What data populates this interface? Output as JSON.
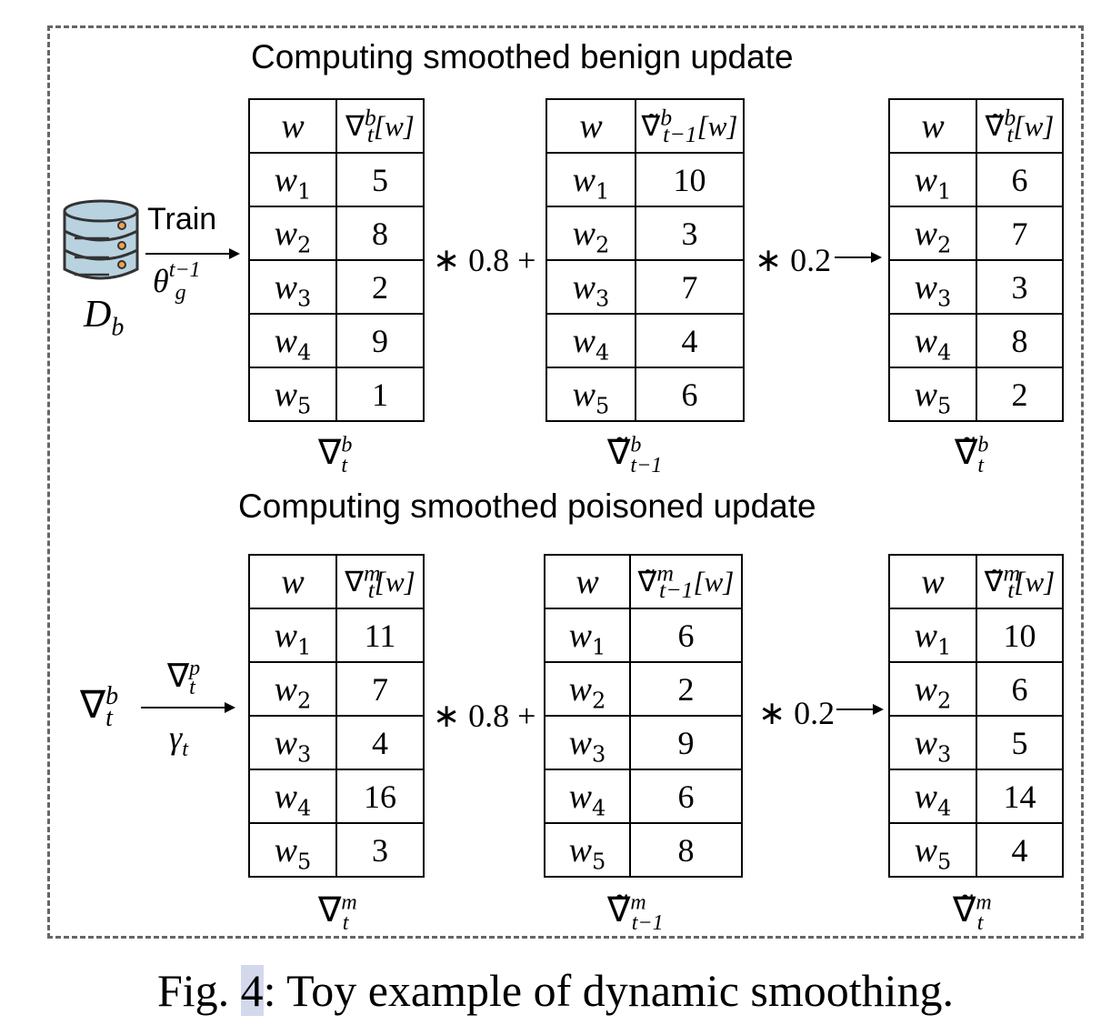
{
  "benign": {
    "title": "Computing smoothed benign update",
    "train_label": "Train",
    "train_param": "θ",
    "dataset_label": "D",
    "dataset_sub": "b",
    "coef1": "∗ 0.8 +",
    "coef2": "∗ 0.2",
    "tables": [
      {
        "header_w": "w",
        "header_v": "∇",
        "values": [
          "5",
          "8",
          "2",
          "9",
          "1"
        ],
        "label": "∇"
      },
      {
        "header_w": "w",
        "header_v": "∇̃",
        "values": [
          "10",
          "3",
          "7",
          "4",
          "6"
        ],
        "label": "∇̃"
      },
      {
        "header_w": "w",
        "header_v": "∇̃",
        "values": [
          "6",
          "7",
          "3",
          "8",
          "2"
        ],
        "label": "∇̃"
      }
    ]
  },
  "poisoned": {
    "title": "Computing smoothed poisoned update",
    "input_label": "∇",
    "arrow_top": "∇",
    "arrow_bottom": "γ",
    "coef1": "∗ 0.8 +",
    "coef2": "∗ 0.2",
    "tables": [
      {
        "header_w": "w",
        "header_v": "∇",
        "values": [
          "11",
          "7",
          "4",
          "16",
          "3"
        ],
        "label": "∇"
      },
      {
        "header_w": "w",
        "header_v": "∇̃",
        "values": [
          "6",
          "2",
          "9",
          "6",
          "8"
        ],
        "label": "∇̃"
      },
      {
        "header_w": "w",
        "header_v": "∇̃",
        "values": [
          "10",
          "6",
          "5",
          "14",
          "4"
        ],
        "label": "∇̃"
      }
    ]
  },
  "rows": [
    "w",
    "w",
    "w",
    "w",
    "w"
  ],
  "row_subs": [
    "1",
    "2",
    "3",
    "4",
    "5"
  ],
  "caption": {
    "prefix": "Fig. ",
    "number": "4",
    "suffix": ": Toy example of dynamic smoothing."
  }
}
